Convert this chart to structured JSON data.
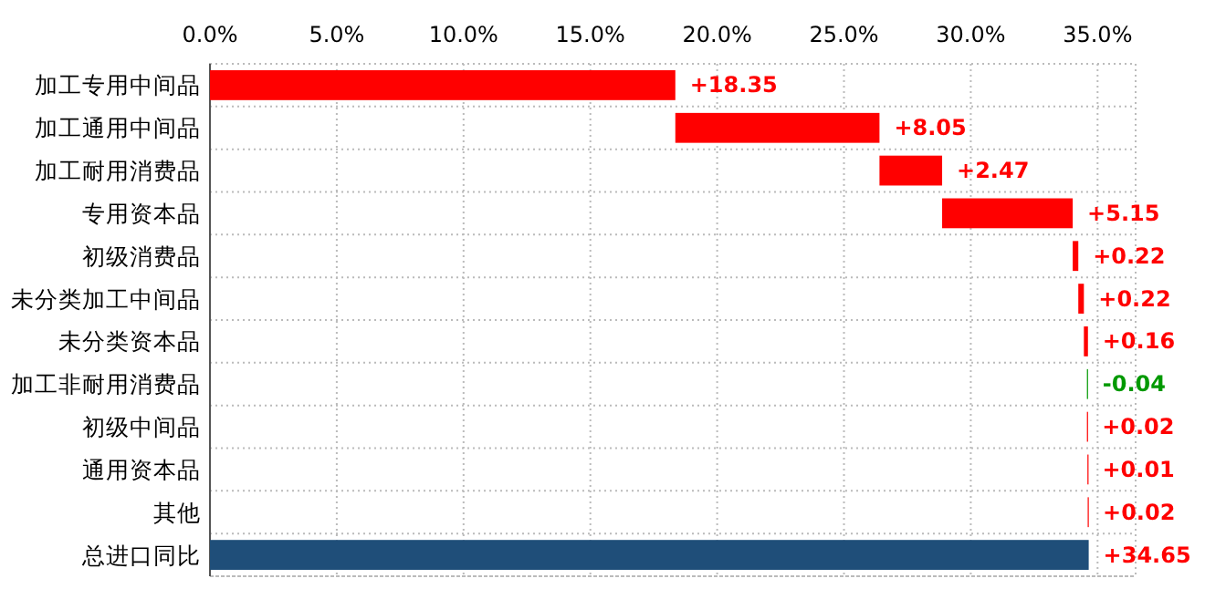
{
  "chart_data": {
    "type": "bar",
    "orientation": "horizontal",
    "categories": [
      "加工专用中间品",
      "加工通用中间品",
      "加工耐用消费品",
      "专用资本品",
      "初级消费品",
      "未分类加工中间品",
      "未分类资本品",
      "加工非耐用消费品",
      "初级中间品",
      "通用资本品",
      "其他",
      "总进口同比"
    ],
    "values": [
      18.35,
      8.05,
      2.47,
      5.15,
      0.22,
      0.22,
      0.16,
      -0.04,
      0.02,
      0.01,
      0.02,
      34.65
    ],
    "base": [
      0,
      18.35,
      26.4,
      28.87,
      34.02,
      34.24,
      34.46,
      34.62,
      34.58,
      34.6,
      34.61,
      0
    ],
    "colors": [
      "#ff0000",
      "#ff0000",
      "#ff0000",
      "#ff0000",
      "#ff0000",
      "#ff0000",
      "#ff0000",
      "#009900",
      "#ff0000",
      "#ff0000",
      "#ff0000",
      "#1f4e79"
    ],
    "value_labels": [
      "+18.35",
      "+8.05",
      "+2.47",
      "+5.15",
      "+0.22",
      "+0.22",
      "+0.16",
      "-0.04",
      "+0.02",
      "+0.01",
      "+0.02",
      "+34.65"
    ],
    "xlim": [
      0,
      36.5
    ],
    "xticks": [
      {
        "value": 0,
        "label": "0.0%"
      },
      {
        "value": 5,
        "label": "5.0%"
      },
      {
        "value": 10,
        "label": "10.0%"
      },
      {
        "value": 15,
        "label": "15.0%"
      },
      {
        "value": 20,
        "label": "20.0%"
      },
      {
        "value": 25,
        "label": "25.0%"
      },
      {
        "value": 30,
        "label": "30.0%"
      },
      {
        "value": 35,
        "label": "35.0%"
      }
    ],
    "grid": true
  }
}
